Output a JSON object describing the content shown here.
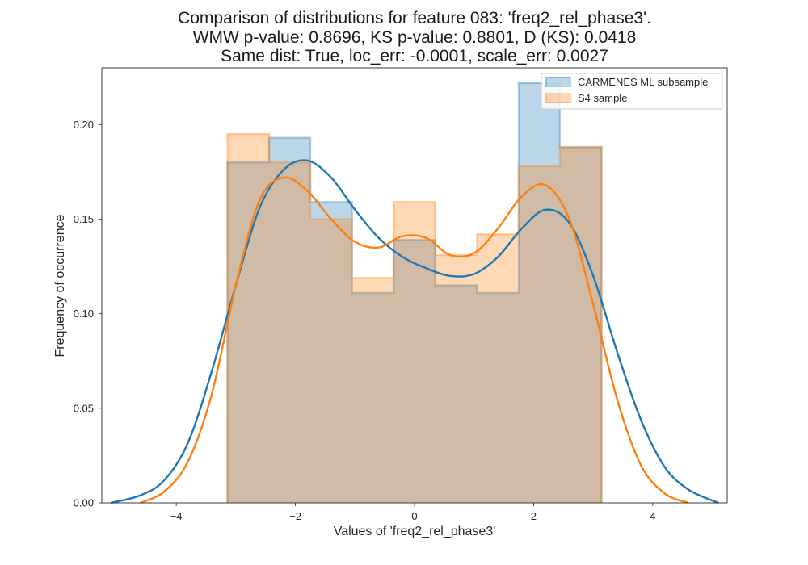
{
  "chart_data": {
    "type": "histogram_kde",
    "title_lines": [
      "Comparison of distributions for feature 083: 'freq2_rel_phase3'.",
      "WMW p-value: 0.8696, KS p-value: 0.8801, D (KS): 0.0418",
      "Same dist: True, loc_err: -0.0001, scale_err: 0.0027"
    ],
    "xlabel": "Values of 'freq2_rel_phase3'",
    "ylabel": "Frequency of occurrence",
    "xlim": [
      -5.25,
      5.25
    ],
    "ylim": [
      0,
      0.23
    ],
    "xticks": [
      -4,
      -2,
      0,
      2,
      4
    ],
    "yticks": [
      0.0,
      0.05,
      0.1,
      0.15,
      0.2
    ],
    "xtick_labels": [
      "−4",
      "−2",
      "0",
      "2",
      "4"
    ],
    "ytick_labels": [
      "0.00",
      "0.05",
      "0.10",
      "0.15",
      "0.20"
    ],
    "grid": false,
    "legend_position": "top-right",
    "bin_edges": [
      -3.14,
      -2.44,
      -1.75,
      -1.05,
      -0.35,
      0.35,
      1.05,
      1.75,
      2.44,
      3.14
    ],
    "series": [
      {
        "name": "CARMENES ML subsample",
        "color": "#1f77b4",
        "hist_values": [
          0.18,
          0.193,
          0.159,
          0.111,
          0.139,
          0.115,
          0.111,
          0.222,
          0.188
        ],
        "kde_x": [
          -5.1,
          -4.6,
          -4.2,
          -3.8,
          -3.4,
          -3.0,
          -2.6,
          -2.2,
          -1.8,
          -1.4,
          -1.0,
          -0.6,
          -0.2,
          0.2,
          0.6,
          1.0,
          1.4,
          1.8,
          2.2,
          2.6,
          3.0,
          3.4,
          3.8,
          4.2,
          4.6,
          5.1
        ],
        "kde_y": [
          0.0,
          0.004,
          0.012,
          0.032,
          0.07,
          0.115,
          0.156,
          0.176,
          0.181,
          0.172,
          0.155,
          0.14,
          0.13,
          0.124,
          0.12,
          0.121,
          0.13,
          0.145,
          0.155,
          0.148,
          0.12,
          0.08,
          0.044,
          0.019,
          0.007,
          0.0
        ]
      },
      {
        "name": "S4 sample",
        "color": "#ff7f0e",
        "hist_values": [
          0.195,
          0.18,
          0.15,
          0.119,
          0.159,
          0.131,
          0.142,
          0.178,
          0.188
        ],
        "kde_x": [
          -4.6,
          -4.2,
          -3.8,
          -3.4,
          -3.0,
          -2.6,
          -2.2,
          -1.8,
          -1.4,
          -1.0,
          -0.6,
          -0.2,
          0.2,
          0.6,
          1.0,
          1.4,
          1.8,
          2.2,
          2.6,
          3.0,
          3.4,
          3.8,
          4.2,
          4.6
        ],
        "kde_y": [
          0.0,
          0.006,
          0.022,
          0.058,
          0.115,
          0.16,
          0.172,
          0.165,
          0.15,
          0.138,
          0.135,
          0.141,
          0.14,
          0.131,
          0.132,
          0.145,
          0.162,
          0.168,
          0.15,
          0.105,
          0.055,
          0.02,
          0.005,
          0.0
        ]
      }
    ]
  }
}
